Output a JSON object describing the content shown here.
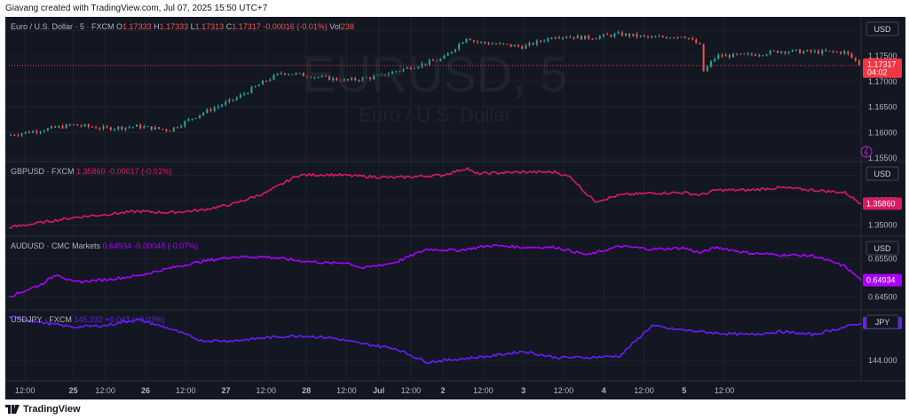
{
  "header": {
    "text": "Giavang created with TradingView.com, Jul 07, 2025 15:50 UTC+7"
  },
  "footer": {
    "brand": "TradingView",
    "logo": "tradingview-logo"
  },
  "theme": {
    "background": "#131722",
    "grid": "#1e222d",
    "text": "#b2b5be",
    "separator": "#2a2e39",
    "up": "#26a69a",
    "down": "#ef5350"
  },
  "chart_data": [
    {
      "type": "candlestick",
      "title": "Euro / U.S. Dollar · 5 · FXCM",
      "watermark": "EURUSD, 5",
      "watermark_sub": "Euro / U.S. Dollar",
      "ohlc": {
        "O": "1.17333",
        "H": "1.17333",
        "L": "1.17313",
        "C": "1.17317",
        "change": "-0.00016 (-0.01%)",
        "vol": "238"
      },
      "currency": "USD",
      "last_price": "1.17317",
      "countdown": "04:02",
      "last_color": "#f23645",
      "ylim": [
        1.155,
        1.182
      ],
      "yticks": [
        "1.18000",
        "1.17500",
        "1.17000",
        "1.16500",
        "1.16000",
        "1.15500"
      ],
      "x": [
        0,
        2,
        4,
        6,
        8,
        10,
        12,
        14,
        16,
        17,
        19,
        21,
        23,
        24,
        27,
        28.5,
        29,
        32,
        34,
        36,
        38,
        40,
        42,
        43,
        43.2,
        44,
        46,
        48,
        50,
        52,
        53
      ],
      "y": [
        1.1595,
        1.1605,
        1.1615,
        1.1608,
        1.1612,
        1.1605,
        1.1638,
        1.1665,
        1.1702,
        1.1718,
        1.171,
        1.1702,
        1.171,
        1.172,
        1.1745,
        1.1788,
        1.1778,
        1.1768,
        1.179,
        1.1786,
        1.1793,
        1.1786,
        1.179,
        1.177,
        1.172,
        1.175,
        1.1752,
        1.176,
        1.1758,
        1.1758,
        1.17317
      ]
    },
    {
      "type": "line",
      "title": "GBPUSD · FXCM",
      "value": "1.35860",
      "change": "-0.00017 (-0.01%)",
      "color": "#d81b60",
      "currency": "USD",
      "ylim": [
        1.347,
        1.374
      ],
      "yticks": [
        "1.37000",
        "1.36000",
        "1.35000"
      ],
      "x": [
        0,
        4,
        8,
        10,
        12,
        14,
        16,
        18,
        20,
        22,
        24,
        27,
        28.5,
        29,
        32,
        34,
        35,
        36,
        36.5,
        38,
        40,
        42,
        43,
        44,
        46,
        48,
        50,
        52,
        53
      ],
      "y": [
        1.349,
        1.353,
        1.3555,
        1.355,
        1.356,
        1.3585,
        1.363,
        1.37,
        1.3702,
        1.3695,
        1.369,
        1.37,
        1.3728,
        1.3706,
        1.3712,
        1.3712,
        1.369,
        1.362,
        1.3595,
        1.362,
        1.3628,
        1.363,
        1.362,
        1.364,
        1.364,
        1.365,
        1.364,
        1.363,
        1.3586
      ]
    },
    {
      "type": "line",
      "title": "AUDUSD · CMC Markets",
      "value": "0.64934",
      "change": "-0.00048 (-0.07%)",
      "color": "#aa00ff",
      "currency": "USD",
      "ylim": [
        0.6425,
        0.66
      ],
      "yticks": [
        "0.65500",
        "0.64500"
      ],
      "x": [
        0,
        2,
        3,
        4,
        6,
        8,
        10,
        12,
        14,
        16,
        18,
        20,
        21,
        22,
        24,
        26,
        28,
        30,
        32,
        34,
        35,
        36,
        38,
        40,
        42,
        43,
        44,
        46,
        48,
        50,
        52,
        53
      ],
      "y": [
        0.645,
        0.6482,
        0.651,
        0.6488,
        0.6495,
        0.6505,
        0.6525,
        0.6543,
        0.6555,
        0.6555,
        0.6545,
        0.6538,
        0.654,
        0.6525,
        0.654,
        0.6575,
        0.6572,
        0.6585,
        0.658,
        0.658,
        0.657,
        0.656,
        0.6583,
        0.6575,
        0.6578,
        0.6565,
        0.658,
        0.6565,
        0.656,
        0.6558,
        0.653,
        0.64934
      ]
    },
    {
      "type": "line",
      "title": "USDJPY · FXCM",
      "value": "145.232",
      "change": "+0.043 (+0.03%)",
      "color": "#651fff",
      "currency": "JPY",
      "ylim": [
        143.45,
        145.55
      ],
      "yticks": [
        "144.000"
      ],
      "x": [
        0,
        2,
        4,
        6,
        8,
        10,
        12,
        14,
        16,
        18,
        20,
        22,
        24,
        26,
        28,
        30,
        32,
        34,
        36,
        38,
        40,
        41,
        42,
        44,
        46,
        48,
        50,
        52,
        53
      ],
      "y": [
        145.45,
        145.25,
        145.1,
        145.15,
        145.35,
        145.05,
        144.65,
        144.65,
        144.75,
        144.82,
        144.75,
        144.55,
        144.4,
        143.95,
        144.05,
        144.15,
        144.3,
        144.1,
        144.1,
        144.15,
        145.15,
        145.05,
        145.0,
        144.9,
        144.85,
        144.95,
        144.85,
        145.1,
        145.232
      ]
    }
  ],
  "time_axis": {
    "labels": [
      "12:00",
      "25",
      "12:00",
      "26",
      "12:00",
      "27",
      "12:00",
      "28",
      "12:00",
      "Jul",
      "12:00",
      "2",
      "12:00",
      "3",
      "12:00",
      "4",
      "12:00",
      "5",
      "12:00"
    ],
    "positions": [
      1,
      4,
      6,
      8.5,
      11,
      13.5,
      16,
      18.5,
      21,
      23,
      25,
      27,
      29.5,
      32,
      34.5,
      37,
      39.5,
      42,
      44.5
    ]
  },
  "tools": {
    "icon": "lightning-icon"
  }
}
